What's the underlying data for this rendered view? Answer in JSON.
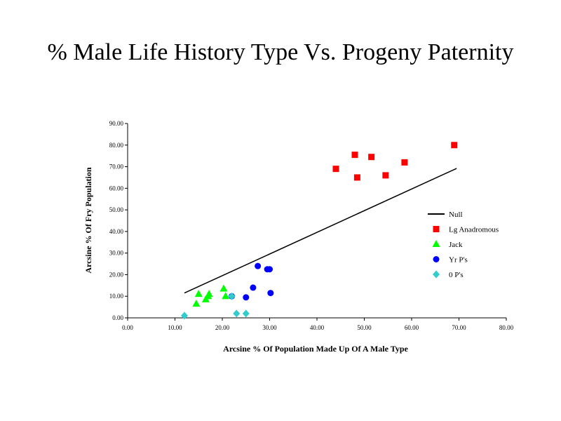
{
  "slide": {
    "title": "% Male Life History Type Vs. Progeny Paternity"
  },
  "chart_data": {
    "type": "scatter",
    "xlabel": "Arcsine % Of Population Made Up Of A Male Type",
    "ylabel": "Arcsine % Of Fry Population",
    "xlim": [
      0,
      80
    ],
    "ylim": [
      0,
      90
    ],
    "x_ticks": [
      "0.00",
      "10.00",
      "20.00",
      "30.00",
      "40.00",
      "50.00",
      "60.00",
      "70.00",
      "80.00"
    ],
    "y_ticks": [
      "0.00",
      "10.00",
      "20.00",
      "30.00",
      "40.00",
      "50.00",
      "60.00",
      "70.00",
      "80.00",
      "90.00"
    ],
    "grid": false,
    "legend_position": "right",
    "series": [
      {
        "name": "Null",
        "kind": "line",
        "color": "#000000",
        "points": [
          [
            12.0,
            11.5
          ],
          [
            69.5,
            69.2
          ]
        ]
      },
      {
        "name": "Lg Anadromous",
        "kind": "marker",
        "marker": "square",
        "color": "#ff0000",
        "points": [
          [
            44.0,
            69.0
          ],
          [
            48.0,
            75.5
          ],
          [
            48.5,
            65.0
          ],
          [
            51.5,
            74.5
          ],
          [
            54.5,
            66.0
          ],
          [
            58.5,
            72.0
          ],
          [
            69.0,
            80.0
          ]
        ]
      },
      {
        "name": "Jack",
        "kind": "marker",
        "marker": "triangle",
        "color": "#00ff00",
        "points": [
          [
            14.5,
            6.5
          ],
          [
            15.0,
            11.0
          ],
          [
            16.5,
            8.5
          ],
          [
            17.0,
            10.0
          ],
          [
            17.2,
            11.0
          ],
          [
            20.3,
            13.5
          ],
          [
            20.7,
            10.0
          ]
        ]
      },
      {
        "name": "Yr P's",
        "kind": "marker",
        "marker": "circle",
        "color": "#0000ff",
        "points": [
          [
            22.0,
            10.0
          ],
          [
            25.0,
            9.5
          ],
          [
            26.5,
            14.0
          ],
          [
            27.5,
            24.0
          ],
          [
            29.5,
            22.5
          ],
          [
            30.0,
            22.5
          ],
          [
            30.2,
            11.5
          ]
        ]
      },
      {
        "name": "0 P's",
        "kind": "marker",
        "marker": "diamond",
        "color": "#33cccc",
        "points": [
          [
            12.0,
            1.0
          ],
          [
            22.0,
            10.0
          ],
          [
            23.0,
            2.0
          ],
          [
            25.0,
            2.0
          ]
        ]
      }
    ]
  }
}
